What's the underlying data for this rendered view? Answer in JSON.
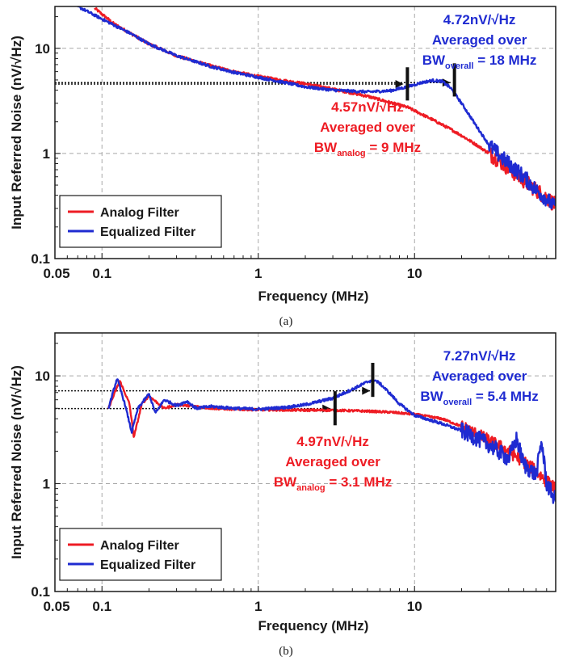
{
  "colors": {
    "analog": "#ee1c24",
    "equalized": "#1f2bd1",
    "grid": "#a8a8a8",
    "axis": "#1a1a1a"
  },
  "chart_data": [
    {
      "type": "line",
      "caption": "(a)",
      "xlabel": "Frequency (MHz)",
      "ylabel": "Input Referred Noise (nV/√Hz)",
      "xscale": "log",
      "yscale": "log",
      "xlim": [
        0.05,
        80
      ],
      "ylim": [
        0.1,
        25
      ],
      "xticks": [
        {
          "v": 0.05,
          "label": "0.05"
        },
        {
          "v": 0.1,
          "label": "0.1"
        },
        {
          "v": 1,
          "label": "1"
        },
        {
          "v": 10,
          "label": "10"
        }
      ],
      "yticks": [
        {
          "v": 0.1,
          "label": "0.1"
        },
        {
          "v": 1,
          "label": "1"
        },
        {
          "v": 10,
          "label": "10"
        }
      ],
      "grid": true,
      "legend": {
        "position": "bottom-left",
        "entries": [
          {
            "name": "Analog Filter",
            "color": "analog"
          },
          {
            "name": "Equalized Filter",
            "color": "equalized"
          }
        ]
      },
      "series": [
        {
          "name": "Analog Filter",
          "color": "analog",
          "noise": 0.05,
          "noise_start": 30,
          "x": [
            0.09,
            0.12,
            0.2,
            0.3,
            0.5,
            0.7,
            1.0,
            1.5,
            2.0,
            3.0,
            5.0,
            7.0,
            9.0,
            10.0,
            13.0,
            17.0,
            20.0,
            25.0,
            30.0,
            35.0,
            40.0,
            50.0,
            60.0,
            70.0,
            80.0
          ],
          "y": [
            24.0,
            17.0,
            11.0,
            8.5,
            6.8,
            6.0,
            5.4,
            4.9,
            4.6,
            4.1,
            3.5,
            3.05,
            2.75,
            2.55,
            2.1,
            1.7,
            1.48,
            1.2,
            1.0,
            0.85,
            0.72,
            0.55,
            0.45,
            0.38,
            0.32
          ]
        },
        {
          "name": "Equalized Filter",
          "color": "equalized",
          "noise": 0.05,
          "noise_start": 30,
          "x": [
            0.07,
            0.1,
            0.15,
            0.2,
            0.3,
            0.5,
            0.7,
            1.0,
            1.5,
            2.0,
            3.0,
            5.0,
            7.0,
            9.0,
            11.0,
            13.0,
            15.0,
            17.0,
            20.0,
            25.0,
            30.0,
            35.0,
            40.0,
            50.0,
            60.0,
            70.0,
            80.0
          ],
          "y": [
            25.0,
            19.0,
            14.0,
            11.0,
            8.5,
            6.7,
            5.9,
            5.3,
            4.7,
            4.3,
            4.0,
            3.85,
            3.95,
            4.3,
            4.7,
            4.95,
            4.85,
            4.2,
            3.0,
            1.8,
            1.2,
            0.95,
            0.8,
            0.6,
            0.45,
            0.37,
            0.3
          ]
        }
      ],
      "hlines": [
        {
          "y": 4.72,
          "x_end": 17.0,
          "color": "analog"
        },
        {
          "y": 4.57,
          "x_end": 8.5,
          "color": "analog"
        }
      ],
      "markers": [
        {
          "x": 9.0,
          "y": 4.4,
          "height_factor": 1.2
        },
        {
          "x": 18.0,
          "y": 4.8,
          "height_factor": 1.2
        }
      ],
      "annotations": [
        {
          "lines": [
            {
              "text": "4.72nV/√Hz"
            },
            {
              "text": "Averaged over"
            },
            {
              "text": "BW",
              "sub": "overall",
              "rest": " = 18 MHz"
            }
          ],
          "color": "equalized",
          "x": 30,
          "y": 18
        },
        {
          "lines": [
            {
              "text": "4.57nV/√Hz"
            },
            {
              "text": "Averaged over"
            },
            {
              "text": "BW",
              "sub": "analog",
              "rest": " = 9 MHz"
            }
          ],
          "color": "analog",
          "x": 5,
          "y": 2.6
        }
      ]
    },
    {
      "type": "line",
      "caption": "(b)",
      "xlabel": "Frequency (MHz)",
      "ylabel": "Input Referred Noise (nV/√Hz)",
      "xscale": "log",
      "yscale": "log",
      "xlim": [
        0.05,
        80
      ],
      "ylim": [
        0.1,
        25
      ],
      "xticks": [
        {
          "v": 0.05,
          "label": "0.05"
        },
        {
          "v": 0.1,
          "label": "0.1"
        },
        {
          "v": 1,
          "label": "1"
        },
        {
          "v": 10,
          "label": "10"
        }
      ],
      "yticks": [
        {
          "v": 0.1,
          "label": "0.1"
        },
        {
          "v": 1,
          "label": "1"
        },
        {
          "v": 10,
          "label": "10"
        }
      ],
      "grid": true,
      "legend": {
        "position": "bottom-left",
        "entries": [
          {
            "name": "Analog Filter",
            "color": "analog"
          },
          {
            "name": "Equalized Filter",
            "color": "equalized"
          }
        ]
      },
      "series": [
        {
          "name": "Analog Filter",
          "color": "analog",
          "noise": 0.04,
          "noise_start": 20,
          "x": [
            0.11,
            0.13,
            0.15,
            0.16,
            0.18,
            0.2,
            0.25,
            0.3,
            0.4,
            0.5,
            0.7,
            1.0,
            2.0,
            3.0,
            5.0,
            7.0,
            10.0,
            15.0,
            20.0,
            30.0,
            40.0,
            50.0,
            60.0,
            70.0,
            80.0
          ],
          "y": [
            5.0,
            9.0,
            5.5,
            2.7,
            5.5,
            6.5,
            5.0,
            5.4,
            5.2,
            5.0,
            4.9,
            4.85,
            4.8,
            4.8,
            4.7,
            4.6,
            4.4,
            4.0,
            3.4,
            2.5,
            2.0,
            1.6,
            1.3,
            1.05,
            0.9
          ]
        },
        {
          "name": "Equalized Filter",
          "color": "equalized",
          "noise": 0.05,
          "noise_start": 20,
          "x": [
            0.11,
            0.125,
            0.14,
            0.155,
            0.17,
            0.2,
            0.22,
            0.25,
            0.3,
            0.35,
            0.4,
            0.5,
            0.7,
            1.0,
            1.5,
            2.0,
            3.0,
            4.0,
            5.0,
            5.5,
            6.0,
            7.0,
            8.0,
            10.0,
            15.0,
            20.0,
            30.0,
            40.0,
            45.0,
            50.0,
            60.0,
            65.0,
            70.0,
            80.0
          ],
          "y": [
            5.0,
            9.5,
            5.5,
            3.0,
            5.0,
            6.8,
            4.5,
            6.0,
            5.3,
            5.8,
            5.0,
            5.2,
            5.0,
            4.9,
            5.1,
            5.4,
            6.2,
            7.5,
            8.8,
            9.2,
            8.5,
            6.8,
            5.5,
            4.3,
            3.6,
            3.1,
            2.3,
            1.7,
            2.6,
            1.5,
            1.2,
            2.5,
            1.0,
            0.7
          ]
        }
      ],
      "hlines": [
        {
          "y": 7.27,
          "x_end": 5.2,
          "color": "analog"
        },
        {
          "y": 4.97,
          "x_end": 2.9,
          "color": "analog"
        }
      ],
      "markers": [
        {
          "x": 3.1,
          "y": 4.8,
          "height_factor": 1.2
        },
        {
          "x": 5.4,
          "y": 8.8,
          "height_factor": 1.2
        }
      ],
      "annotations": [
        {
          "lines": [
            {
              "text": "7.27nV/√Hz"
            },
            {
              "text": "Averaged over"
            },
            {
              "text": "BW",
              "sub": "overall",
              "rest": " = 5.4 MHz"
            }
          ],
          "color": "equalized",
          "x": 30,
          "y": 18
        },
        {
          "lines": [
            {
              "text": "4.97nV/√Hz"
            },
            {
              "text": "Averaged over"
            },
            {
              "text": "BW",
              "sub": "analog",
              "rest": " = 3.1 MHz"
            }
          ],
          "color": "analog",
          "x": 3.0,
          "y": 2.6
        }
      ]
    }
  ]
}
